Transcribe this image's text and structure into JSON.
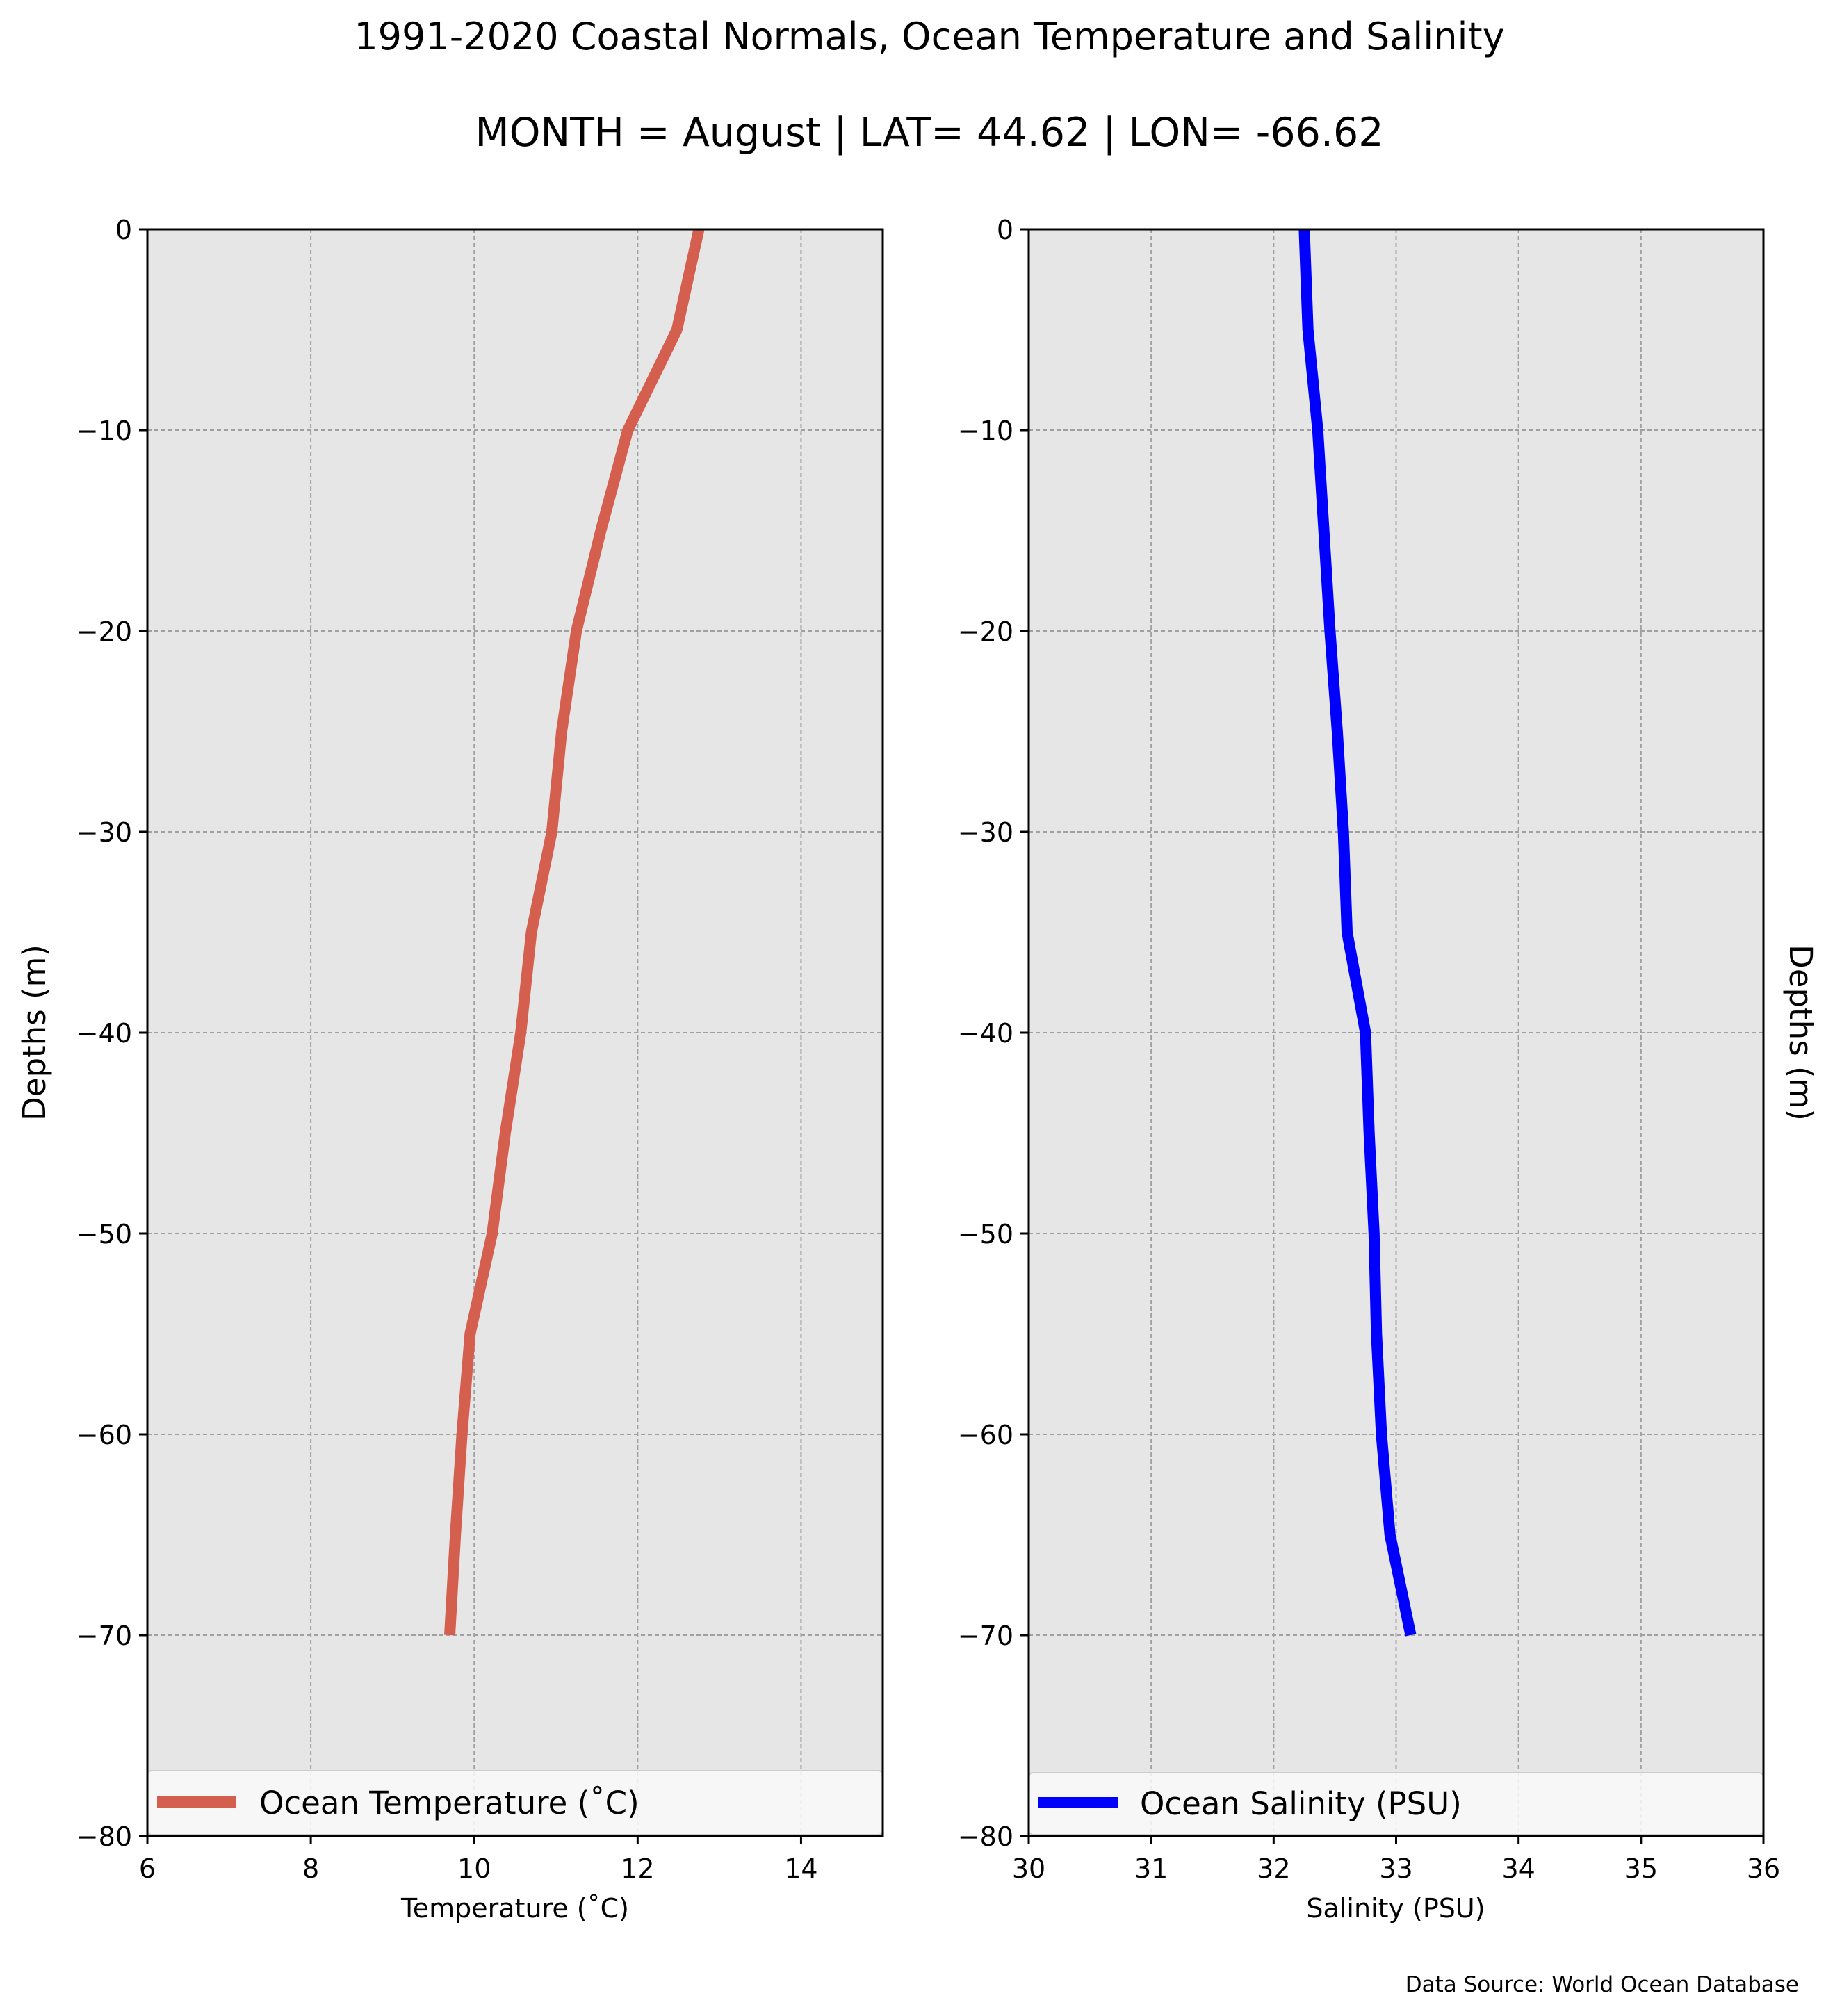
{
  "figure": {
    "title_line1": "1991-2020 Coastal Normals, Ocean Temperature and Salinity",
    "title_line2": "MONTH = August | LAT= 44.62 | LON= -66.62",
    "source_note": "Data Source: World Ocean Database"
  },
  "chart_data": [
    {
      "type": "line",
      "xlabel": "Temperature ($^\\circ$C)",
      "xlabel_display": "Temperature (˚C)",
      "ylabel": "Depths (m)",
      "xlim": [
        6,
        15
      ],
      "ylim": [
        -80,
        0
      ],
      "xticks": [
        6,
        8,
        10,
        12,
        14
      ],
      "yticks": [
        0,
        -10,
        -20,
        -30,
        -40,
        -50,
        -60,
        -70,
        -80
      ],
      "grid": true,
      "legend_position": "bottom",
      "series": [
        {
          "name": "Ocean Temperature (˚C)",
          "color": "#d45f4e",
          "x": [
            12.75,
            12.48,
            11.88,
            11.55,
            11.25,
            11.07,
            10.95,
            10.7,
            10.57,
            10.38,
            10.22,
            9.95,
            9.85,
            9.77,
            9.7
          ],
          "y": [
            0,
            -5,
            -10,
            -15,
            -20,
            -25,
            -30,
            -35,
            -40,
            -45,
            -50,
            -55,
            -60,
            -65,
            -70
          ]
        }
      ]
    },
    {
      "type": "line",
      "xlabel": "Salinity (PSU)",
      "ylabel": "Depths (m)",
      "ylabel_side": "right",
      "xlim": [
        30,
        36
      ],
      "ylim": [
        -80,
        0
      ],
      "xticks": [
        30,
        31,
        32,
        33,
        34,
        35,
        36
      ],
      "yticks": [
        0,
        -10,
        -20,
        -30,
        -40,
        -50,
        -60,
        -70,
        -80
      ],
      "grid": true,
      "legend_position": "bottom",
      "series": [
        {
          "name": "Ocean Salinity (PSU)",
          "color": "#0000ff",
          "x": [
            32.25,
            32.28,
            32.36,
            32.41,
            32.46,
            32.52,
            32.57,
            32.6,
            32.75,
            32.78,
            32.82,
            32.84,
            32.88,
            32.95,
            33.12
          ],
          "y": [
            0,
            -5,
            -10,
            -15,
            -20,
            -25,
            -30,
            -35,
            -40,
            -45,
            -50,
            -55,
            -60,
            -65,
            -70
          ]
        }
      ]
    }
  ]
}
